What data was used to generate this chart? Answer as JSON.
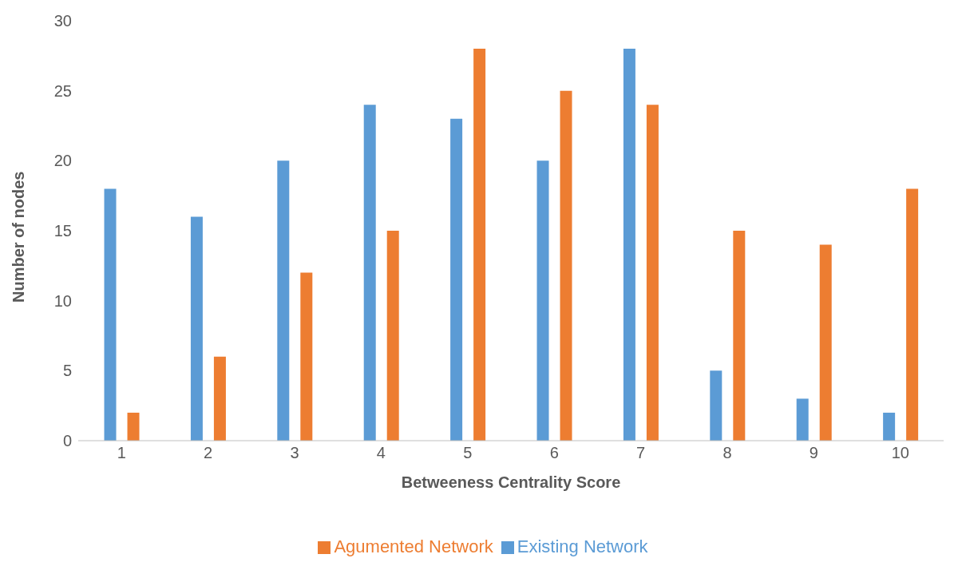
{
  "chart_data": {
    "type": "bar",
    "xlabel": "Betweeness Centrality Score",
    "ylabel": "Number of nodes",
    "categories": [
      "1",
      "2",
      "3",
      "4",
      "5",
      "6",
      "7",
      "8",
      "9",
      "10"
    ],
    "series": [
      {
        "name": "Existing Network",
        "color": "#5b9bd5",
        "values": [
          18,
          16,
          20,
          24,
          23,
          20,
          28,
          5,
          3,
          2
        ]
      },
      {
        "name": "Agumented Network",
        "color": "#ed7d31",
        "values": [
          2,
          6,
          12,
          15,
          28,
          25,
          24,
          15,
          14,
          18
        ]
      }
    ],
    "ylim": [
      0,
      30
    ],
    "yticks": [
      0,
      5,
      10,
      15,
      20,
      25,
      30
    ],
    "grid": false,
    "legend": "bottom"
  }
}
